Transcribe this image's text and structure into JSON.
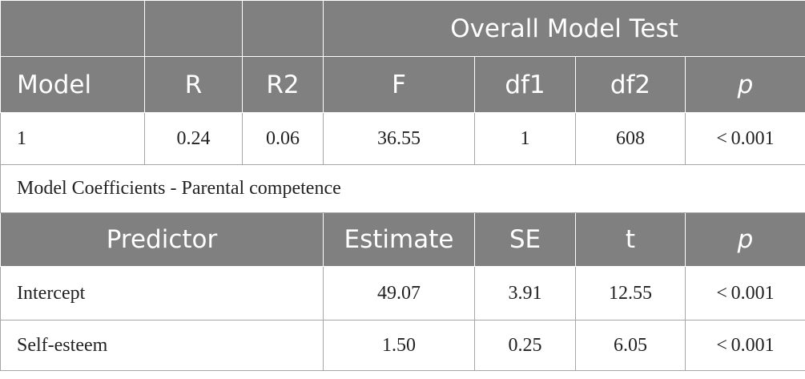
{
  "table1": {
    "group_header": "Overall Model Test",
    "columns": [
      "Model",
      "R",
      "R2",
      "F",
      "df1",
      "df2",
      "p"
    ],
    "rows": [
      [
        "1",
        "0.24",
        "0.06",
        "36.55",
        "1",
        "608",
        "< 0.001"
      ]
    ]
  },
  "section_title": "Model Coefficients - Parental competence",
  "table2": {
    "columns": [
      "Predictor",
      "Estimate",
      "SE",
      "t",
      "p"
    ],
    "rows": [
      [
        "Intercept",
        "49.07",
        "3.91",
        "12.55",
        "< 0.001"
      ],
      [
        "Self-esteem",
        "1.50",
        "0.25",
        "6.05",
        "< 0.001"
      ]
    ]
  }
}
